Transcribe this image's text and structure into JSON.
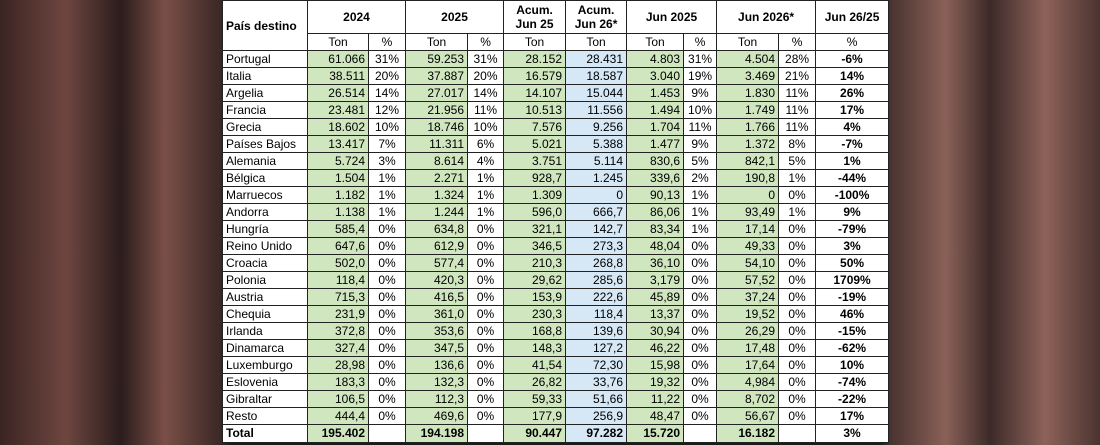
{
  "table": {
    "header_top": [
      "País destino",
      "2024",
      "2025",
      "Acum. Jun 25",
      "Acum. Jun 26*",
      "Jun 2025",
      "Jun 2026*",
      "Jun 26/25"
    ],
    "header_sub": [
      "Ton",
      "%",
      "Ton",
      "%",
      "Ton",
      "Ton",
      "Ton",
      "%",
      "Ton",
      "%",
      "%"
    ],
    "rows": [
      [
        "Portugal",
        "61.066",
        "31%",
        "59.253",
        "31%",
        "28.152",
        "28.431",
        "4.803",
        "31%",
        "4.504",
        "28%",
        "-6%"
      ],
      [
        "Italia",
        "38.511",
        "20%",
        "37.887",
        "20%",
        "16.579",
        "18.587",
        "3.040",
        "19%",
        "3.469",
        "21%",
        "14%"
      ],
      [
        "Argelia",
        "26.514",
        "14%",
        "27.017",
        "14%",
        "14.107",
        "15.044",
        "1.453",
        "9%",
        "1.830",
        "11%",
        "26%"
      ],
      [
        "Francia",
        "23.481",
        "12%",
        "21.956",
        "11%",
        "10.513",
        "11.556",
        "1.494",
        "10%",
        "1.749",
        "11%",
        "17%"
      ],
      [
        "Grecia",
        "18.602",
        "10%",
        "18.746",
        "10%",
        "7.576",
        "9.256",
        "1.704",
        "11%",
        "1.766",
        "11%",
        "4%"
      ],
      [
        "Países Bajos",
        "13.417",
        "7%",
        "11.311",
        "6%",
        "5.021",
        "5.388",
        "1.477",
        "9%",
        "1.372",
        "8%",
        "-7%"
      ],
      [
        "Alemania",
        "5.724",
        "3%",
        "8.614",
        "4%",
        "3.751",
        "5.114",
        "830,6",
        "5%",
        "842,1",
        "5%",
        "1%"
      ],
      [
        "Bélgica",
        "1.504",
        "1%",
        "2.271",
        "1%",
        "928,7",
        "1.245",
        "339,6",
        "2%",
        "190,8",
        "1%",
        "-44%"
      ],
      [
        "Marruecos",
        "1.182",
        "1%",
        "1.324",
        "1%",
        "1.309",
        "0",
        "90,13",
        "1%",
        "0",
        "0%",
        "-100%"
      ],
      [
        "Andorra",
        "1.138",
        "1%",
        "1.244",
        "1%",
        "596,0",
        "666,7",
        "86,06",
        "1%",
        "93,49",
        "1%",
        "9%"
      ],
      [
        "Hungría",
        "585,4",
        "0%",
        "634,8",
        "0%",
        "321,1",
        "142,7",
        "83,34",
        "1%",
        "17,14",
        "0%",
        "-79%"
      ],
      [
        "Reino Unido",
        "647,6",
        "0%",
        "612,9",
        "0%",
        "346,5",
        "273,3",
        "48,04",
        "0%",
        "49,33",
        "0%",
        "3%"
      ],
      [
        "Croacia",
        "502,0",
        "0%",
        "577,4",
        "0%",
        "210,3",
        "268,8",
        "36,10",
        "0%",
        "54,10",
        "0%",
        "50%"
      ],
      [
        "Polonia",
        "118,4",
        "0%",
        "420,3",
        "0%",
        "29,62",
        "285,6",
        "3,179",
        "0%",
        "57,52",
        "0%",
        "1709%"
      ],
      [
        "Austria",
        "715,3",
        "0%",
        "416,5",
        "0%",
        "153,9",
        "222,6",
        "45,89",
        "0%",
        "37,24",
        "0%",
        "-19%"
      ],
      [
        "Chequia",
        "231,9",
        "0%",
        "361,0",
        "0%",
        "230,3",
        "118,4",
        "13,37",
        "0%",
        "19,52",
        "0%",
        "46%"
      ],
      [
        "Irlanda",
        "372,8",
        "0%",
        "353,6",
        "0%",
        "168,8",
        "139,6",
        "30,94",
        "0%",
        "26,29",
        "0%",
        "-15%"
      ],
      [
        "Dinamarca",
        "327,4",
        "0%",
        "347,5",
        "0%",
        "148,3",
        "127,2",
        "46,22",
        "0%",
        "17,48",
        "0%",
        "-62%"
      ],
      [
        "Luxemburgo",
        "28,98",
        "0%",
        "136,6",
        "0%",
        "41,54",
        "72,30",
        "15,98",
        "0%",
        "17,64",
        "0%",
        "10%"
      ],
      [
        "Eslovenia",
        "183,3",
        "0%",
        "132,3",
        "0%",
        "26,82",
        "33,76",
        "19,32",
        "0%",
        "4,984",
        "0%",
        "-74%"
      ],
      [
        "Gibraltar",
        "106,5",
        "0%",
        "112,3",
        "0%",
        "59,33",
        "51,66",
        "11,22",
        "0%",
        "8,702",
        "0%",
        "-22%"
      ],
      [
        "Resto",
        "444,4",
        "0%",
        "469,6",
        "0%",
        "177,9",
        "256,9",
        "48,47",
        "0%",
        "56,67",
        "0%",
        "17%"
      ]
    ],
    "total": [
      "Total",
      "195.402",
      null,
      "194.198",
      null,
      "90.447",
      "97.282",
      "15.720",
      null,
      "16.182",
      null,
      "3%"
    ]
  }
}
